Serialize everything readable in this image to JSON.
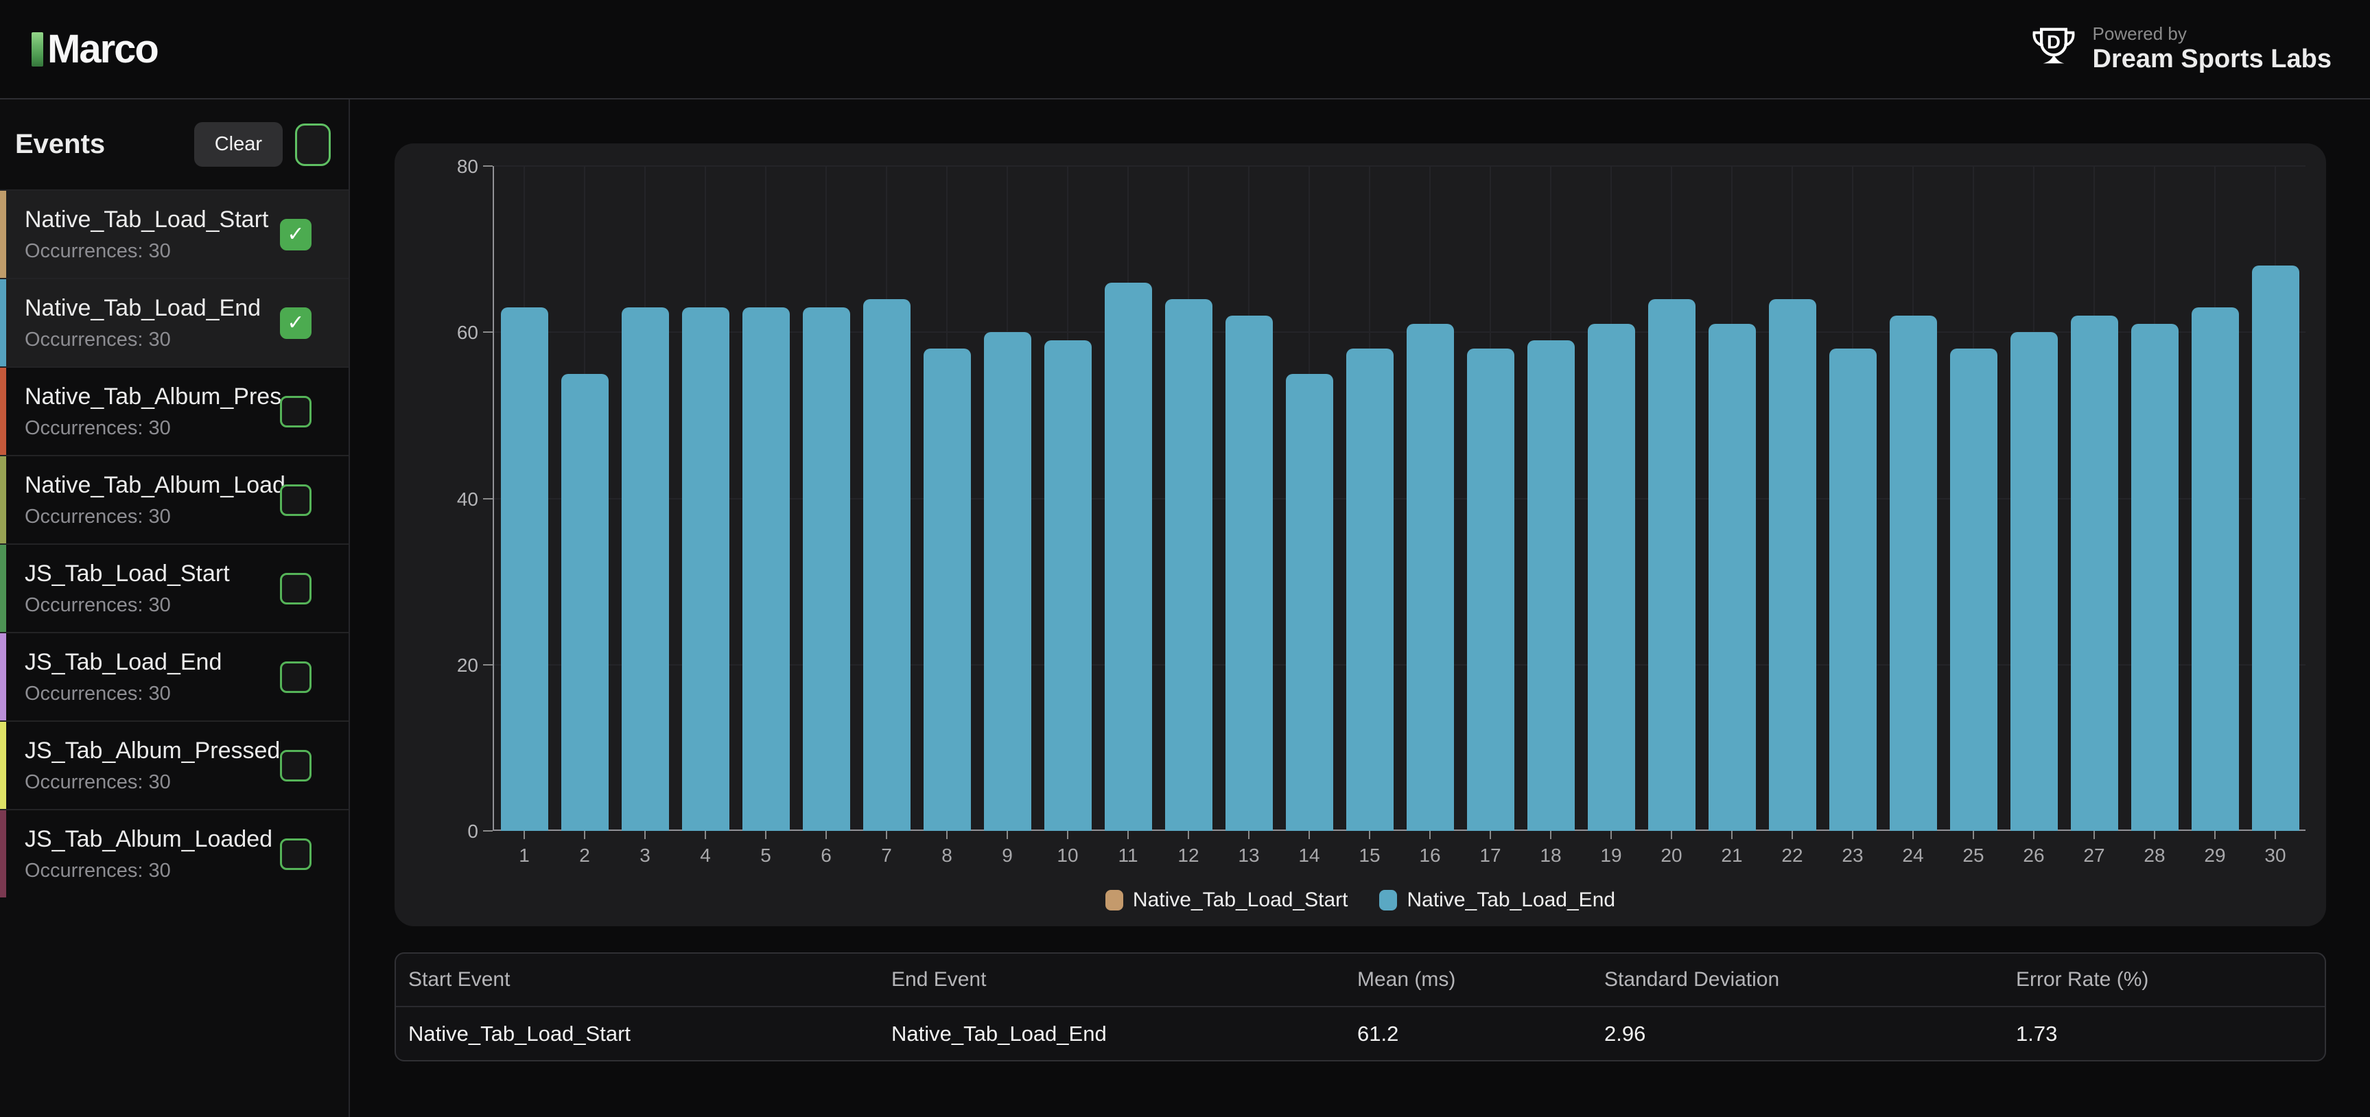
{
  "header": {
    "logo_text": "Marco",
    "powered_by": "Powered by",
    "brand": "Dream Sports Labs"
  },
  "sidebar": {
    "title": "Events",
    "clear_label": "Clear",
    "items": [
      {
        "label": "Native_Tab_Load_Start",
        "meta": "Occurrences: 30",
        "color": "#bf9c6a",
        "checked": true,
        "selected": true
      },
      {
        "label": "Native_Tab_Load_End",
        "meta": "Occurrences: 30",
        "color": "#55a2bf",
        "checked": true,
        "selected": true
      },
      {
        "label": "Native_Tab_Album_Pres...",
        "meta": "Occurrences: 30",
        "color": "#c5593a",
        "checked": false,
        "selected": false
      },
      {
        "label": "Native_Tab_Album_Load...",
        "meta": "Occurrences: 30",
        "color": "#97a253",
        "checked": false,
        "selected": false
      },
      {
        "label": "JS_Tab_Load_Start",
        "meta": "Occurrences: 30",
        "color": "#4d9354",
        "checked": false,
        "selected": false
      },
      {
        "label": "JS_Tab_Load_End",
        "meta": "Occurrences: 30",
        "color": "#bb8fd9",
        "checked": false,
        "selected": false
      },
      {
        "label": "JS_Tab_Album_Pressed",
        "meta": "Occurrences: 30",
        "color": "#dee266",
        "checked": false,
        "selected": false
      },
      {
        "label": "JS_Tab_Album_Loaded",
        "meta": "Occurrences: 30",
        "color": "#7a3850",
        "checked": false,
        "selected": false
      }
    ]
  },
  "chart_data": {
    "type": "bar",
    "x": [
      1,
      2,
      3,
      4,
      5,
      6,
      7,
      8,
      9,
      10,
      11,
      12,
      13,
      14,
      15,
      16,
      17,
      18,
      19,
      20,
      21,
      22,
      23,
      24,
      25,
      26,
      27,
      28,
      29,
      30
    ],
    "series": [
      {
        "name": "Native_Tab_Load_Start",
        "color": "#c49a6c",
        "values": [
          0,
          0,
          0,
          0,
          0,
          0,
          0,
          0,
          0,
          0,
          0,
          0,
          0,
          0,
          0,
          0,
          0,
          0,
          0,
          0,
          0,
          0,
          0,
          0,
          0,
          0,
          0,
          0,
          0,
          0
        ]
      },
      {
        "name": "Native_Tab_Load_End",
        "color": "#5aa8c3",
        "values": [
          63,
          55,
          63,
          63,
          63,
          63,
          64,
          58,
          60,
          59,
          66,
          64,
          62,
          55,
          58,
          61,
          58,
          59,
          61,
          64,
          61,
          64,
          58,
          62,
          58,
          60,
          62,
          61,
          63,
          68
        ]
      }
    ],
    "title": "",
    "xlabel": "",
    "ylabel": "",
    "ylim": [
      0,
      80
    ],
    "yticks": [
      0,
      20,
      40,
      60,
      80
    ],
    "grid": true,
    "legend_position": "bottom"
  },
  "table": {
    "columns": [
      "Start Event",
      "End Event",
      "Mean (ms)",
      "Standard Deviation",
      "Error Rate (%)"
    ],
    "rows": [
      [
        "Native_Tab_Load_Start",
        "Native_Tab_Load_End",
        "61.2",
        "2.96",
        "1.73"
      ]
    ]
  },
  "colors": {
    "accent_green": "#4cab50",
    "bar_blue": "#5aa8c3",
    "bar_tan": "#c49a6c",
    "card_bg": "#1c1c1e",
    "page_bg": "#0b0b0c"
  }
}
